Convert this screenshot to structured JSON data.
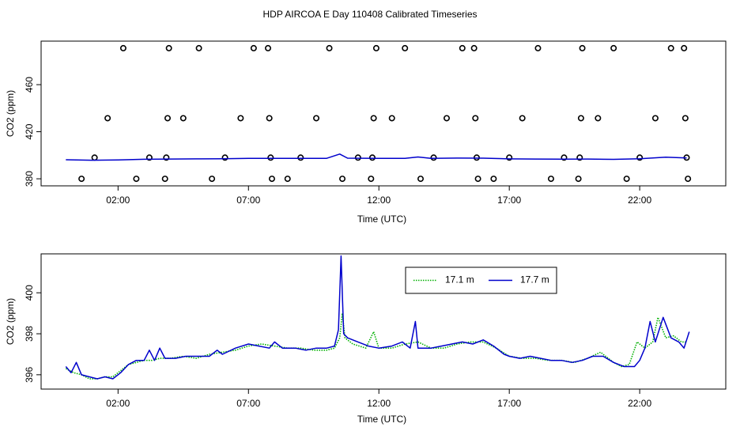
{
  "title": "HDP AIRCOA E  Day 110408  Calibrated Timeseries",
  "chart_data": [
    {
      "type": "scatter",
      "xlabel": "Time (UTC)",
      "ylabel": "CO2 (ppm)",
      "x_ticks": [
        "02:00",
        "07:00",
        "12:00",
        "17:00",
        "22:00"
      ],
      "x_tick_hours": [
        2,
        7,
        12,
        17,
        22
      ],
      "y_ticks": [
        380,
        420,
        460
      ],
      "xlim": [
        -0.95,
        25.3
      ],
      "ylim": [
        374,
        497
      ],
      "series": [
        {
          "color": "#000000",
          "marker": "open-circle",
          "points": [
            [
              0.6,
              380
            ],
            [
              1.1,
              398
            ],
            [
              1.6,
              431.5
            ],
            [
              2.2,
              491
            ],
            [
              2.7,
              380
            ],
            [
              3.2,
              398
            ],
            [
              3.8,
              380
            ],
            [
              3.85,
              398
            ],
            [
              3.9,
              431.5
            ],
            [
              3.95,
              491
            ],
            [
              4.5,
              431.5
            ],
            [
              5.1,
              491
            ],
            [
              5.6,
              380
            ],
            [
              6.1,
              398
            ],
            [
              6.7,
              431.5
            ],
            [
              7.2,
              491
            ],
            [
              7.75,
              491
            ],
            [
              7.8,
              431.5
            ],
            [
              7.85,
              398
            ],
            [
              7.9,
              380
            ],
            [
              8.5,
              380
            ],
            [
              9.0,
              398
            ],
            [
              9.6,
              431.5
            ],
            [
              10.1,
              491
            ],
            [
              10.6,
              380
            ],
            [
              11.2,
              398
            ],
            [
              11.7,
              380
            ],
            [
              11.75,
              398
            ],
            [
              11.8,
              431.5
            ],
            [
              11.9,
              491
            ],
            [
              12.5,
              431.5
            ],
            [
              13.0,
              491
            ],
            [
              13.6,
              380
            ],
            [
              14.1,
              398
            ],
            [
              14.6,
              431.5
            ],
            [
              15.2,
              491
            ],
            [
              15.65,
              491
            ],
            [
              15.7,
              431.5
            ],
            [
              15.75,
              398
            ],
            [
              15.8,
              380
            ],
            [
              16.4,
              380
            ],
            [
              17.0,
              398
            ],
            [
              17.5,
              431.5
            ],
            [
              18.1,
              491
            ],
            [
              18.6,
              380
            ],
            [
              19.1,
              398
            ],
            [
              19.65,
              380
            ],
            [
              19.7,
              398
            ],
            [
              19.75,
              431.5
            ],
            [
              19.8,
              491
            ],
            [
              20.4,
              431.5
            ],
            [
              21.0,
              491
            ],
            [
              21.5,
              380
            ],
            [
              22.0,
              398
            ],
            [
              22.6,
              431.5
            ],
            [
              23.2,
              491
            ],
            [
              23.7,
              491
            ],
            [
              23.75,
              431.5
            ],
            [
              23.8,
              398
            ],
            [
              23.85,
              380
            ]
          ]
        },
        {
          "color": "#0000cc",
          "style": "line",
          "points": [
            [
              0,
              396.2
            ],
            [
              1,
              395.8
            ],
            [
              2,
              396.0
            ],
            [
              3,
              396.6
            ],
            [
              4,
              396.8
            ],
            [
              5,
              396.9
            ],
            [
              6,
              397.0
            ],
            [
              7,
              397.4
            ],
            [
              8,
              397.3
            ],
            [
              9,
              397.3
            ],
            [
              10,
              397.4
            ],
            [
              10.5,
              401.0
            ],
            [
              10.8,
              397.5
            ],
            [
              12,
              397.4
            ],
            [
              13,
              397.4
            ],
            [
              13.5,
              398.5
            ],
            [
              14,
              397.4
            ],
            [
              15,
              397.6
            ],
            [
              16,
              397.5
            ],
            [
              17,
              396.9
            ],
            [
              18,
              396.8
            ],
            [
              19,
              396.7
            ],
            [
              20,
              396.8
            ],
            [
              21,
              396.5
            ],
            [
              22,
              397.0
            ],
            [
              23,
              398.3
            ],
            [
              23.8,
              397.7
            ]
          ]
        }
      ]
    },
    {
      "type": "line",
      "xlabel": "Time (UTC)",
      "ylabel": "CO2 (ppm)",
      "x_ticks": [
        "02:00",
        "07:00",
        "12:00",
        "17:00",
        "22:00"
      ],
      "x_tick_hours": [
        2,
        7,
        12,
        17,
        22
      ],
      "y_ticks": [
        396,
        398,
        400
      ],
      "xlim": [
        -0.95,
        25.3
      ],
      "ylim": [
        395.3,
        401.9
      ],
      "legend": "top-center",
      "series": [
        {
          "name": "17.1 m",
          "color": "#00b000",
          "style": "dotted",
          "points": [
            [
              0,
              396.3
            ],
            [
              0.3,
              396.1
            ],
            [
              0.6,
              396.0
            ],
            [
              0.9,
              395.8
            ],
            [
              1.2,
              395.8
            ],
            [
              1.5,
              395.9
            ],
            [
              1.8,
              395.9
            ],
            [
              2.1,
              396.2
            ],
            [
              2.4,
              396.5
            ],
            [
              2.7,
              396.6
            ],
            [
              3.0,
              396.7
            ],
            [
              3.3,
              396.7
            ],
            [
              3.6,
              396.8
            ],
            [
              4.0,
              396.8
            ],
            [
              4.5,
              396.9
            ],
            [
              5.0,
              396.8
            ],
            [
              5.5,
              397.0
            ],
            [
              6.0,
              397.1
            ],
            [
              6.5,
              397.2
            ],
            [
              7.0,
              397.4
            ],
            [
              7.5,
              397.5
            ],
            [
              8.0,
              397.4
            ],
            [
              8.5,
              397.3
            ],
            [
              9.0,
              397.3
            ],
            [
              9.5,
              397.2
            ],
            [
              10.0,
              397.2
            ],
            [
              10.3,
              397.3
            ],
            [
              10.5,
              397.8
            ],
            [
              10.6,
              399.0
            ],
            [
              10.7,
              397.8
            ],
            [
              11.0,
              397.5
            ],
            [
              11.5,
              397.3
            ],
            [
              11.8,
              398.1
            ],
            [
              12.0,
              397.3
            ],
            [
              12.5,
              397.3
            ],
            [
              13.0,
              397.5
            ],
            [
              13.5,
              397.6
            ],
            [
              14.0,
              397.3
            ],
            [
              14.5,
              397.3
            ],
            [
              15.0,
              397.5
            ],
            [
              15.5,
              397.6
            ],
            [
              16.0,
              397.6
            ],
            [
              16.5,
              397.3
            ],
            [
              17.0,
              396.9
            ],
            [
              17.5,
              396.8
            ],
            [
              18.0,
              396.8
            ],
            [
              18.5,
              396.7
            ],
            [
              19.0,
              396.7
            ],
            [
              19.5,
              396.6
            ],
            [
              20.0,
              396.8
            ],
            [
              20.5,
              397.1
            ],
            [
              21.0,
              396.6
            ],
            [
              21.3,
              396.4
            ],
            [
              21.6,
              396.5
            ],
            [
              21.9,
              397.6
            ],
            [
              22.2,
              397.3
            ],
            [
              22.5,
              397.6
            ],
            [
              22.7,
              398.8
            ],
            [
              23.0,
              397.8
            ],
            [
              23.3,
              397.9
            ],
            [
              23.6,
              397.6
            ],
            [
              23.8,
              397.6
            ]
          ]
        },
        {
          "name": "17.7 m",
          "color": "#0000cc",
          "style": "solid",
          "points": [
            [
              0,
              396.4
            ],
            [
              0.2,
              396.1
            ],
            [
              0.4,
              396.6
            ],
            [
              0.6,
              396.0
            ],
            [
              0.9,
              395.9
            ],
            [
              1.2,
              395.8
            ],
            [
              1.5,
              395.9
            ],
            [
              1.8,
              395.8
            ],
            [
              2.1,
              396.1
            ],
            [
              2.4,
              396.5
            ],
            [
              2.7,
              396.7
            ],
            [
              3.0,
              396.7
            ],
            [
              3.2,
              397.2
            ],
            [
              3.4,
              396.7
            ],
            [
              3.6,
              397.3
            ],
            [
              3.8,
              396.8
            ],
            [
              4.2,
              396.8
            ],
            [
              4.6,
              396.9
            ],
            [
              5.0,
              396.9
            ],
            [
              5.5,
              396.9
            ],
            [
              5.8,
              397.2
            ],
            [
              6.0,
              397.0
            ],
            [
              6.5,
              397.3
            ],
            [
              7.0,
              397.5
            ],
            [
              7.4,
              397.4
            ],
            [
              7.8,
              397.3
            ],
            [
              8.0,
              397.6
            ],
            [
              8.3,
              397.3
            ],
            [
              8.8,
              397.3
            ],
            [
              9.2,
              397.2
            ],
            [
              9.6,
              397.3
            ],
            [
              10.0,
              397.3
            ],
            [
              10.3,
              397.4
            ],
            [
              10.45,
              398.2
            ],
            [
              10.55,
              401.8
            ],
            [
              10.65,
              398.0
            ],
            [
              10.8,
              397.8
            ],
            [
              11.2,
              397.6
            ],
            [
              11.6,
              397.4
            ],
            [
              12.0,
              397.3
            ],
            [
              12.5,
              397.4
            ],
            [
              12.9,
              397.6
            ],
            [
              13.2,
              397.3
            ],
            [
              13.4,
              398.6
            ],
            [
              13.5,
              397.3
            ],
            [
              14.0,
              397.3
            ],
            [
              14.4,
              397.4
            ],
            [
              14.8,
              397.5
            ],
            [
              15.2,
              397.6
            ],
            [
              15.6,
              397.5
            ],
            [
              16.0,
              397.7
            ],
            [
              16.4,
              397.4
            ],
            [
              16.8,
              397.0
            ],
            [
              17.0,
              396.9
            ],
            [
              17.4,
              396.8
            ],
            [
              17.8,
              396.9
            ],
            [
              18.2,
              396.8
            ],
            [
              18.6,
              396.7
            ],
            [
              19.0,
              396.7
            ],
            [
              19.4,
              396.6
            ],
            [
              19.8,
              396.7
            ],
            [
              20.2,
              396.9
            ],
            [
              20.6,
              396.9
            ],
            [
              21.0,
              396.6
            ],
            [
              21.4,
              396.4
            ],
            [
              21.8,
              396.4
            ],
            [
              22.0,
              396.7
            ],
            [
              22.2,
              397.3
            ],
            [
              22.4,
              398.6
            ],
            [
              22.6,
              397.6
            ],
            [
              22.9,
              398.8
            ],
            [
              23.2,
              397.8
            ],
            [
              23.5,
              397.6
            ],
            [
              23.7,
              397.3
            ],
            [
              23.9,
              398.1
            ]
          ]
        }
      ]
    }
  ]
}
